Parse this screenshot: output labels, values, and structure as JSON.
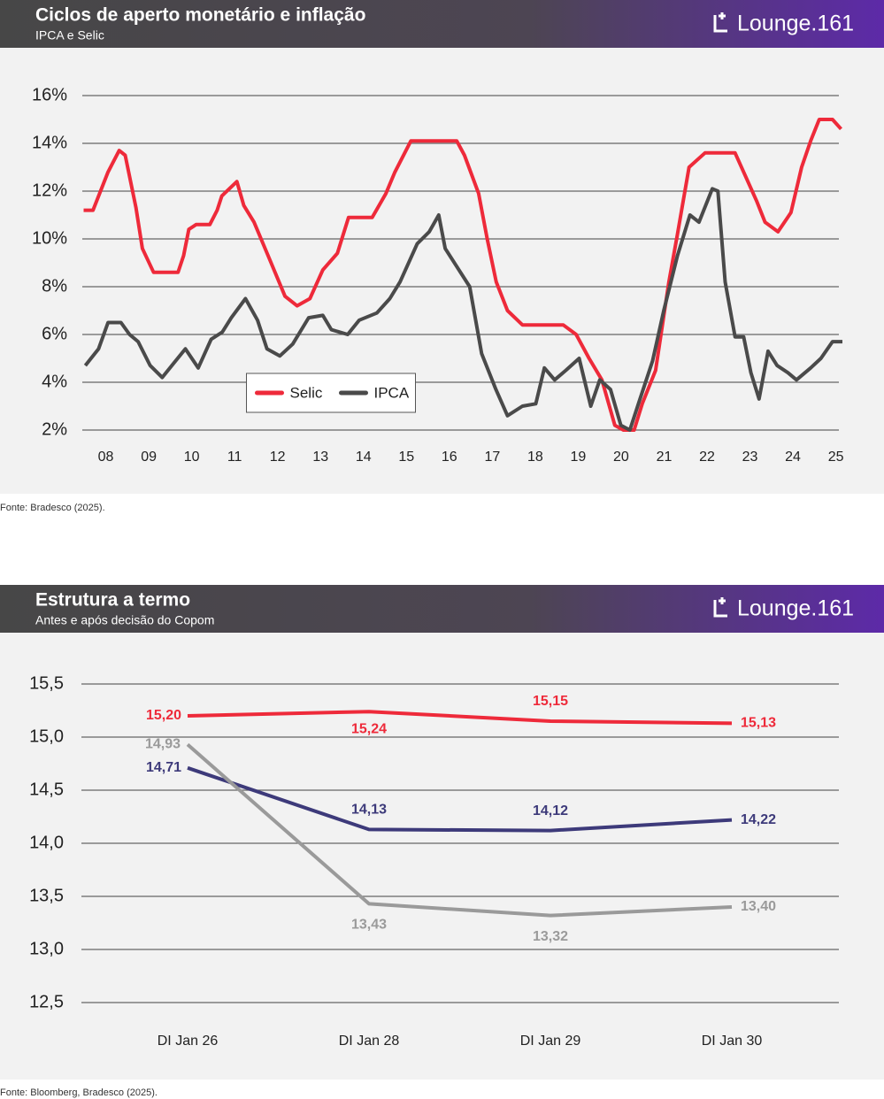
{
  "chart_data": [
    {
      "type": "line",
      "title": "Ciclos de aperto monetário e inflação",
      "subtitle": "IPCA e Selic",
      "brand": "Lounge.161",
      "source": "Fonte: Bradesco (2025).",
      "xlim": [
        7.7,
        25.4
      ],
      "xticks": [
        {
          "value": 8,
          "label": "08"
        },
        {
          "value": 9,
          "label": "09"
        },
        10,
        11,
        12,
        13,
        14,
        15,
        16,
        17,
        18,
        19,
        20,
        21,
        22,
        23,
        24,
        25
      ],
      "ylim": [
        2,
        16
      ],
      "yticks": [
        {
          "value": 2,
          "label": "2%"
        },
        {
          "value": 4,
          "label": "4%"
        },
        {
          "value": 6,
          "label": "6%"
        },
        {
          "value": 8,
          "label": "8%"
        },
        {
          "value": 10,
          "label": "10%"
        },
        {
          "value": 12,
          "label": "12%"
        },
        {
          "value": 14,
          "label": "14%"
        },
        {
          "value": 16,
          "label": "16%"
        }
      ],
      "grid": true,
      "legend": "lower center",
      "series": [
        {
          "name": "Selic",
          "color": "#ee2a3a",
          "x": [
            7.73,
            7.95,
            8.3,
            8.56,
            8.7,
            8.95,
            9.1,
            9.36,
            9.93,
            10.06,
            10.18,
            10.35,
            10.67,
            10.84,
            10.95,
            11.3,
            11.46,
            11.7,
            12.05,
            12.42,
            12.7,
            13.0,
            13.3,
            13.64,
            13.9,
            14.45,
            14.77,
            14.98,
            15.35,
            16.42,
            16.6,
            16.93,
            17.13,
            17.34,
            17.6,
            17.95,
            18.9,
            19.2,
            19.5,
            19.8,
            20.1,
            20.3,
            20.55,
            20.74,
            21.05,
            21.36,
            21.56,
            21.83,
            22.2,
            22.9,
            23.2,
            23.4,
            23.6,
            23.9,
            24.2,
            24.45,
            24.66,
            24.86,
            25.17,
            25.37
          ],
          "values": [
            11.2,
            11.2,
            12.8,
            13.7,
            13.5,
            11.3,
            9.6,
            8.6,
            8.6,
            9.3,
            10.4,
            10.6,
            10.6,
            11.2,
            11.8,
            12.4,
            11.4,
            10.7,
            9.2,
            7.6,
            7.2,
            7.5,
            8.7,
            9.4,
            10.9,
            10.9,
            11.9,
            12.8,
            14.1,
            14.1,
            13.5,
            11.9,
            10.0,
            8.2,
            7.0,
            6.4,
            6.4,
            6.0,
            5.0,
            4.1,
            2.2,
            2.0,
            2.0,
            3.1,
            4.5,
            8.2,
            10.2,
            13.0,
            13.6,
            13.6,
            12.4,
            11.6,
            10.7,
            10.3,
            11.1,
            13.0,
            14.1,
            15.0,
            15.0,
            14.6
          ]
        },
        {
          "name": "IPCA",
          "color": "#4a4a4a",
          "x": [
            7.77,
            8.08,
            8.3,
            8.6,
            8.8,
            9.0,
            9.28,
            9.56,
            9.83,
            10.1,
            10.4,
            10.7,
            10.96,
            11.17,
            11.5,
            11.78,
            12.0,
            12.3,
            12.6,
            12.97,
            13.3,
            13.5,
            13.88,
            14.15,
            14.56,
            14.86,
            15.1,
            15.5,
            15.78,
            16.0,
            16.15,
            16.4,
            16.72,
            17.0,
            17.33,
            17.6,
            17.95,
            18.26,
            18.46,
            18.7,
            18.96,
            19.27,
            19.54,
            19.75,
            20.0,
            20.24,
            20.45,
            20.65,
            20.98,
            21.24,
            21.56,
            21.85,
            22.06,
            22.37,
            22.5,
            22.67,
            22.9,
            23.1,
            23.27,
            23.46,
            23.67,
            23.88,
            24.13,
            24.33,
            24.66,
            24.9,
            25.17,
            25.4
          ],
          "values": [
            4.7,
            5.4,
            6.5,
            6.5,
            6.0,
            5.7,
            4.7,
            4.2,
            4.8,
            5.4,
            4.6,
            5.8,
            6.1,
            6.7,
            7.5,
            6.6,
            5.4,
            5.1,
            5.6,
            6.7,
            6.8,
            6.2,
            6.0,
            6.6,
            6.9,
            7.5,
            8.2,
            9.8,
            10.3,
            11.0,
            9.6,
            8.9,
            8.0,
            5.2,
            3.7,
            2.6,
            3.0,
            3.1,
            4.6,
            4.1,
            4.5,
            5.0,
            3.0,
            4.1,
            3.7,
            2.2,
            2.0,
            3.1,
            4.9,
            7.0,
            9.3,
            11.0,
            10.7,
            12.1,
            12.0,
            8.2,
            5.9,
            5.9,
            4.4,
            3.3,
            5.3,
            4.7,
            4.4,
            4.1,
            4.6,
            5.0,
            5.7,
            5.7
          ]
        }
      ]
    },
    {
      "type": "line",
      "title": "Estrutura a termo",
      "subtitle": "Antes e após decisão do Copom",
      "brand": "Lounge.161",
      "source": "Fonte: Bloomberg, Bradesco (2025).",
      "categories": [
        "DI Jan 26",
        "DI Jan 28",
        "DI Jan 29",
        "DI Jan 30"
      ],
      "ylim": [
        12.5,
        15.5
      ],
      "yticks": [
        {
          "value": 12.5,
          "label": "12,5"
        },
        {
          "value": 13,
          "label": "13,0"
        },
        {
          "value": 13.5,
          "label": "13,5"
        },
        {
          "value": 14,
          "label": "14,0"
        },
        {
          "value": 14.5,
          "label": "14,5"
        },
        {
          "value": 15,
          "label": "15,0"
        },
        {
          "value": 15.5,
          "label": "15,5"
        }
      ],
      "grid": true,
      "series": [
        {
          "color": "#ee2a3a",
          "values": [
            15.2,
            15.24,
            15.15,
            15.13
          ],
          "value_labels": [
            "15,20",
            "15,24",
            "15,15",
            "15,13"
          ]
        },
        {
          "color": "#3d3a7a",
          "values": [
            14.71,
            14.13,
            14.12,
            14.22
          ],
          "value_labels": [
            "14,71",
            "14,13",
            "14,12",
            "14,22"
          ]
        },
        {
          "color": "#9a9a9a",
          "values": [
            14.93,
            13.43,
            13.32,
            13.4
          ],
          "value_labels": [
            "14,93",
            "13,43",
            "13,32",
            "13,40"
          ]
        }
      ]
    }
  ]
}
